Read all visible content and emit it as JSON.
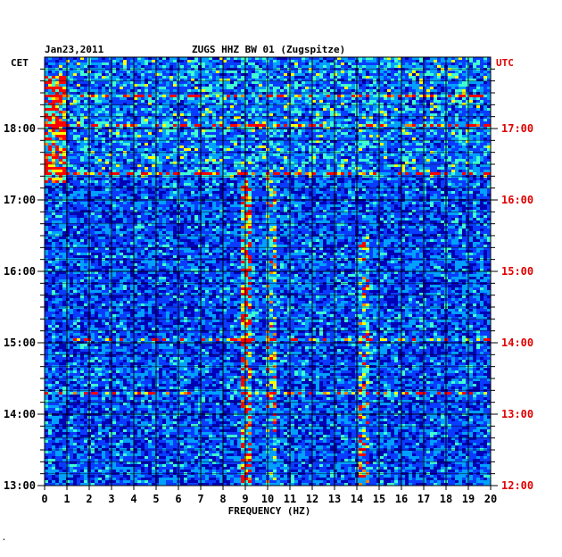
{
  "header": {
    "date": "Jan23,2011",
    "station": "ZUGS HHZ BW 01 (Zugspitze)",
    "left_timezone": "CET",
    "right_timezone": "UTC"
  },
  "footer_mark": "̽",
  "colors": {
    "background": "#0000b4",
    "grid": "#000000",
    "utc_label": "#e00000",
    "scale": [
      "#0000a0",
      "#0a3cff",
      "#00a0ff",
      "#40ffd0",
      "#ffff00",
      "#ff8000",
      "#ff0000"
    ]
  },
  "chart_data": {
    "type": "heatmap",
    "title": "ZUGS HHZ BW 01 (Zugspitze)",
    "date": "Jan23,2011",
    "xlabel": "FREQUENCY (HZ)",
    "xlim": [
      0,
      20
    ],
    "x_ticks": [
      "0",
      "1",
      "2",
      "3",
      "4",
      "5",
      "6",
      "7",
      "8",
      "9",
      "10",
      "11",
      "12",
      "13",
      "14",
      "15",
      "16",
      "17",
      "18",
      "19",
      "20"
    ],
    "y_left_label": "CET",
    "y_left_ticks": [
      "13:00",
      "14:00",
      "15:00",
      "16:00",
      "17:00",
      "18:00"
    ],
    "y_right_label": "UTC",
    "y_right_ticks": [
      "12:00",
      "13:00",
      "14:00",
      "15:00",
      "16:00",
      "17:00"
    ],
    "time_range_cet": [
      "13:00",
      "18:50"
    ],
    "grid": true,
    "features": [
      {
        "freq_hz": [
          0,
          0.8
        ],
        "time_cet": [
          "17:15",
          "18:45"
        ],
        "intensity": "high"
      },
      {
        "freq_hz": [
          9.0,
          9.2
        ],
        "time_cet": [
          "13:00",
          "17:20"
        ],
        "intensity": "high"
      },
      {
        "freq_hz": [
          10.0,
          10.2
        ],
        "time_cet": [
          "13:00",
          "17:20"
        ],
        "intensity": "medium"
      },
      {
        "freq_hz": [
          14.2,
          14.4
        ],
        "time_cet": [
          "13:00",
          "16:30"
        ],
        "intensity": "medium"
      }
    ]
  }
}
